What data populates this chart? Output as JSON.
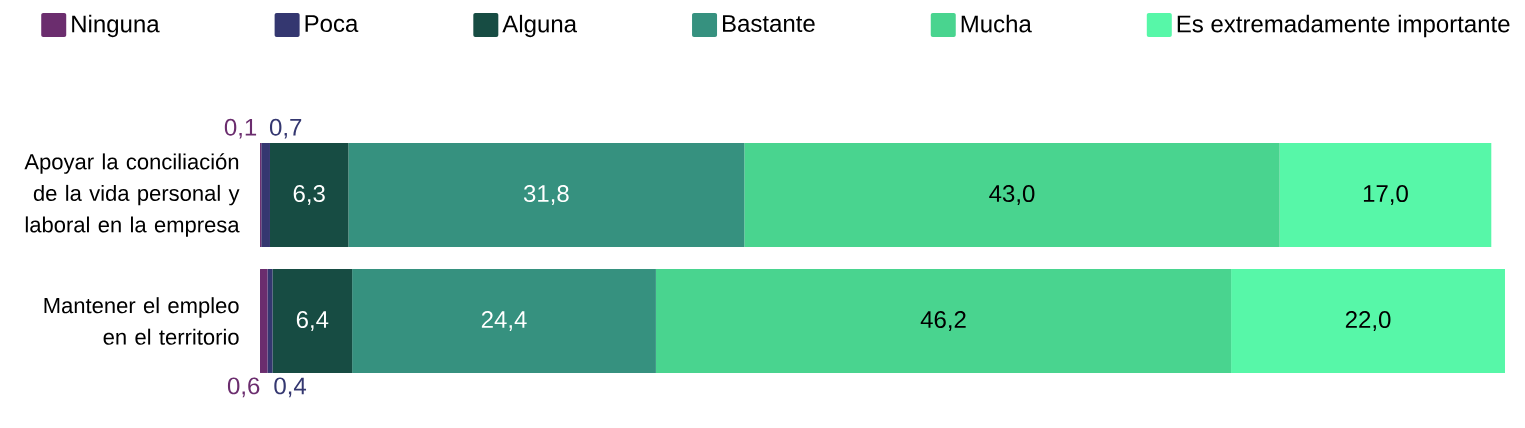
{
  "chart_data": {
    "type": "bar",
    "orientation": "horizontal",
    "stacked": true,
    "categories": [
      "Apoyar la conciliación de la vida personal y laboral en la empresa",
      "Mantener el empleo en el territorio"
    ],
    "series": [
      {
        "name": "Ninguna",
        "color": "#6b2d6e",
        "values": [
          0.1,
          0.6
        ],
        "value_labels": [
          "0,1",
          "0,6"
        ]
      },
      {
        "name": "Poca",
        "color": "#343770",
        "values": [
          0.7,
          0.4
        ],
        "value_labels": [
          "0,7",
          "0,4"
        ]
      },
      {
        "name": "Alguna",
        "color": "#174c43",
        "values": [
          6.3,
          6.4
        ],
        "value_labels": [
          "6,3",
          "6,4"
        ]
      },
      {
        "name": "Bastante",
        "color": "#36917f",
        "values": [
          31.8,
          24.4
        ],
        "value_labels": [
          "31,8",
          "24,4"
        ]
      },
      {
        "name": "Mucha",
        "color": "#49d48f",
        "values": [
          43.0,
          46.2
        ],
        "value_labels": [
          "43,0",
          "46,2"
        ]
      },
      {
        "name": "Es extremadamente importante",
        "color": "#57f7a8",
        "values": [
          17.0,
          22.0
        ],
        "value_labels": [
          "17,0",
          "22,0"
        ]
      }
    ],
    "legend": "top",
    "tick_labels": "y"
  }
}
